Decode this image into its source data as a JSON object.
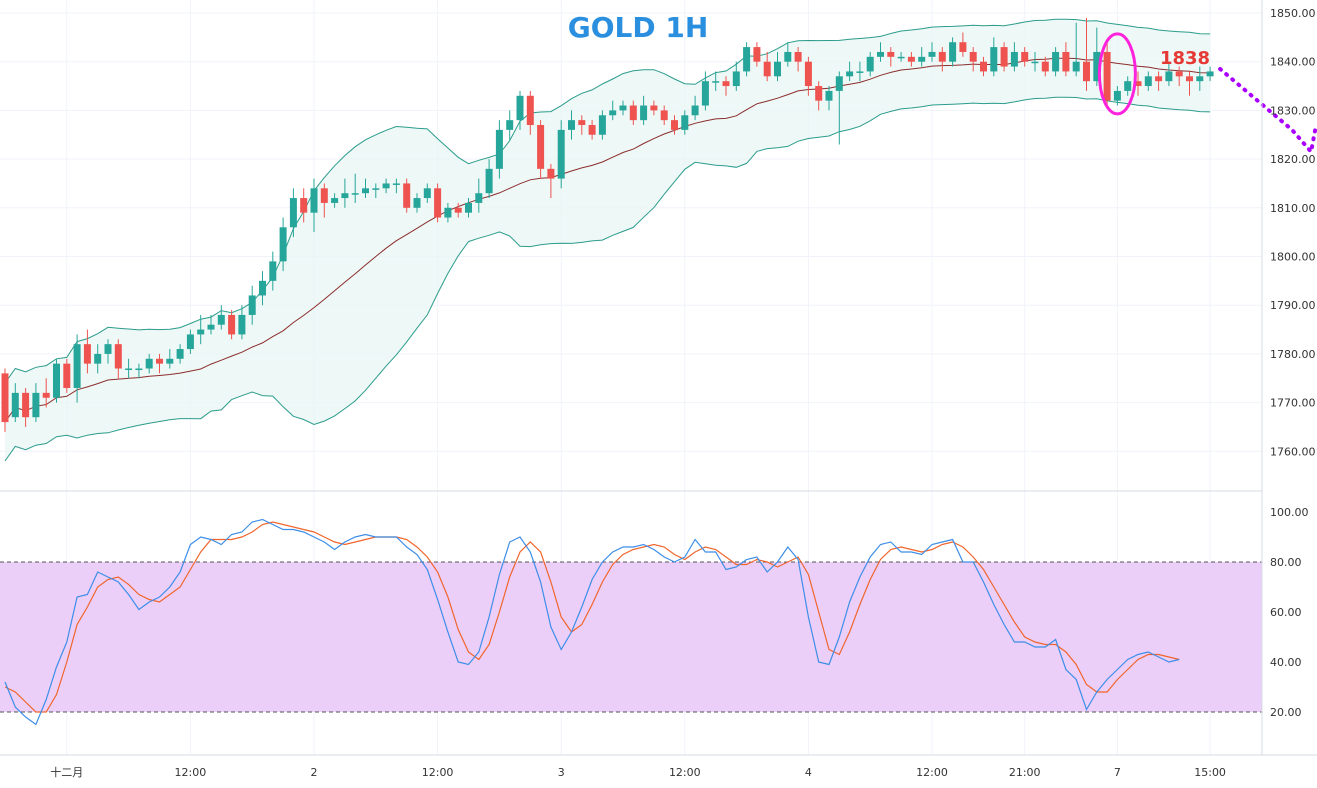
{
  "chart_data": [
    {
      "type": "candlestick",
      "title": "GOLD 1H",
      "ylim": [
        1755,
        1852
      ],
      "y_ticks": [
        "1850.00",
        "1840.00",
        "1830.00",
        "1820.00",
        "1810.00",
        "1800.00",
        "1790.00",
        "1780.00",
        "1770.00",
        "1760.00"
      ],
      "grid": true,
      "colors": {
        "up": "#26a69a",
        "down": "#ef5350",
        "band": "#2b9c8c",
        "basis": "#8b2e2e",
        "band_fill": "#e8f5f3",
        "title": "#2b8fe0",
        "annotation": "#e53935",
        "forecast": "#aa00ff",
        "highlight": "#ff22dd"
      },
      "annotation_price": "1838",
      "forecast": {
        "start": 1838.5,
        "mid": 1826,
        "end": 1821.5
      },
      "candles": [
        [
          1776,
          1766,
          1777,
          1764
        ],
        [
          1767,
          1772,
          1774,
          1766
        ],
        [
          1772,
          1767,
          1773,
          1765
        ],
        [
          1767,
          1772,
          1774,
          1766
        ],
        [
          1772,
          1771,
          1775,
          1769
        ],
        [
          1771,
          1778,
          1779,
          1770
        ],
        [
          1778,
          1773,
          1779,
          1772
        ],
        [
          1773,
          1782,
          1784,
          1770
        ],
        [
          1782,
          1778,
          1785,
          1776
        ],
        [
          1778,
          1780,
          1782,
          1776
        ],
        [
          1780,
          1782,
          1783,
          1778
        ],
        [
          1782,
          1777,
          1783,
          1775
        ],
        [
          1777,
          1777,
          1779,
          1775
        ],
        [
          1777,
          1777,
          1778,
          1775
        ],
        [
          1777,
          1779,
          1780,
          1776
        ],
        [
          1779,
          1778,
          1780,
          1776
        ],
        [
          1778,
          1779,
          1781,
          1777
        ],
        [
          1779,
          1781,
          1782,
          1778
        ],
        [
          1781,
          1784,
          1785,
          1780
        ],
        [
          1784,
          1785,
          1788,
          1782
        ],
        [
          1785,
          1786,
          1788,
          1784
        ],
        [
          1786,
          1788,
          1790,
          1785
        ],
        [
          1788,
          1784,
          1789,
          1783
        ],
        [
          1784,
          1788,
          1790,
          1783
        ],
        [
          1788,
          1792,
          1794,
          1786
        ],
        [
          1792,
          1795,
          1797,
          1790
        ],
        [
          1795,
          1799,
          1801,
          1793
        ],
        [
          1799,
          1806,
          1808,
          1797
        ],
        [
          1806,
          1812,
          1814,
          1804
        ],
        [
          1812,
          1809,
          1814,
          1807
        ],
        [
          1809,
          1814,
          1816,
          1805
        ],
        [
          1814,
          1811,
          1815,
          1808
        ],
        [
          1811,
          1812,
          1813,
          1810
        ],
        [
          1812,
          1813,
          1816,
          1810
        ],
        [
          1813,
          1813,
          1817,
          1811
        ],
        [
          1813,
          1814,
          1816,
          1812
        ],
        [
          1814,
          1814,
          1815,
          1812
        ],
        [
          1814,
          1815,
          1816,
          1813
        ],
        [
          1815,
          1815,
          1816,
          1813
        ],
        [
          1815,
          1810,
          1816,
          1809
        ],
        [
          1810,
          1812,
          1813,
          1809
        ],
        [
          1812,
          1814,
          1815,
          1811
        ],
        [
          1814,
          1808,
          1815,
          1807
        ],
        [
          1808,
          1810,
          1811,
          1807
        ],
        [
          1810,
          1809,
          1811,
          1808
        ],
        [
          1809,
          1811,
          1812,
          1808
        ],
        [
          1811,
          1813,
          1816,
          1809
        ],
        [
          1813,
          1818,
          1820,
          1812
        ],
        [
          1818,
          1826,
          1828,
          1816
        ],
        [
          1826,
          1828,
          1830,
          1824
        ],
        [
          1828,
          1833,
          1834,
          1826
        ],
        [
          1833,
          1827,
          1834,
          1825
        ],
        [
          1827,
          1818,
          1828,
          1816
        ],
        [
          1818,
          1816,
          1819,
          1812
        ],
        [
          1816,
          1826,
          1828,
          1814
        ],
        [
          1826,
          1828,
          1830,
          1824
        ],
        [
          1828,
          1827,
          1829,
          1825
        ],
        [
          1827,
          1825,
          1828,
          1824
        ],
        [
          1825,
          1829,
          1830,
          1824
        ],
        [
          1829,
          1830,
          1832,
          1828
        ],
        [
          1830,
          1831,
          1832,
          1829
        ],
        [
          1831,
          1828,
          1832,
          1827
        ],
        [
          1828,
          1831,
          1833,
          1827
        ],
        [
          1831,
          1830,
          1832,
          1829
        ],
        [
          1830,
          1828,
          1831,
          1827
        ],
        [
          1828,
          1826,
          1829,
          1825
        ],
        [
          1826,
          1829,
          1830,
          1825
        ],
        [
          1829,
          1831,
          1833,
          1828
        ],
        [
          1831,
          1836,
          1838,
          1830
        ],
        [
          1836,
          1836,
          1838,
          1834
        ],
        [
          1836,
          1835,
          1837,
          1833
        ],
        [
          1835,
          1838,
          1840,
          1834
        ],
        [
          1838,
          1843,
          1844,
          1837
        ],
        [
          1843,
          1840,
          1844,
          1839
        ],
        [
          1840,
          1837,
          1842,
          1836
        ],
        [
          1837,
          1840,
          1842,
          1836
        ],
        [
          1840,
          1842,
          1844,
          1839
        ],
        [
          1842,
          1840,
          1843,
          1838
        ],
        [
          1840,
          1835,
          1841,
          1833
        ],
        [
          1835,
          1832,
          1836,
          1830
        ],
        [
          1832,
          1834,
          1835,
          1830
        ],
        [
          1834,
          1837,
          1838,
          1823
        ],
        [
          1837,
          1838,
          1840,
          1836
        ],
        [
          1838,
          1838,
          1840,
          1836
        ],
        [
          1838,
          1841,
          1842,
          1837
        ],
        [
          1841,
          1842,
          1844,
          1840
        ],
        [
          1842,
          1841,
          1843,
          1839
        ],
        [
          1841,
          1841,
          1842,
          1840
        ],
        [
          1841,
          1840,
          1842,
          1839
        ],
        [
          1840,
          1841,
          1843,
          1839
        ],
        [
          1841,
          1842,
          1844,
          1840
        ],
        [
          1842,
          1840,
          1843,
          1838
        ],
        [
          1840,
          1844,
          1845,
          1839
        ],
        [
          1844,
          1842,
          1846,
          1841
        ],
        [
          1842,
          1840,
          1843,
          1838
        ],
        [
          1840,
          1838,
          1841,
          1837
        ],
        [
          1838,
          1843,
          1845,
          1837
        ],
        [
          1843,
          1839,
          1844,
          1838
        ],
        [
          1839,
          1842,
          1844,
          1838
        ],
        [
          1842,
          1840,
          1843,
          1839
        ],
        [
          1840,
          1840,
          1842,
          1838
        ],
        [
          1840,
          1838,
          1841,
          1837
        ],
        [
          1838,
          1842,
          1843,
          1837
        ],
        [
          1842,
          1838,
          1844,
          1837
        ],
        [
          1838,
          1840,
          1848,
          1837
        ],
        [
          1840,
          1836,
          1849,
          1834
        ],
        [
          1836,
          1842,
          1847,
          1835
        ],
        [
          1842,
          1832,
          1844,
          1831
        ],
        [
          1832,
          1834,
          1835,
          1831
        ],
        [
          1834,
          1836,
          1837,
          1833
        ],
        [
          1836,
          1835,
          1838,
          1833
        ],
        [
          1835,
          1837,
          1838,
          1834
        ],
        [
          1837,
          1836,
          1838,
          1834
        ],
        [
          1836,
          1838,
          1840,
          1835
        ],
        [
          1838,
          1837,
          1839,
          1835
        ],
        [
          1837,
          1836,
          1838,
          1833
        ],
        [
          1836,
          1837,
          1839,
          1834
        ],
        [
          1837,
          1838,
          1839,
          1836
        ]
      ]
    },
    {
      "type": "line",
      "ylim": [
        0,
        110
      ],
      "y_ticks": [
        "100.00",
        "80.00",
        "60.00",
        "40.00",
        "20.00"
      ],
      "band": [
        20,
        80
      ],
      "colors": {
        "k": "#3d8ee8",
        "d": "#f0652c",
        "band_fill": "#ebcff9",
        "band_line": "#555555"
      },
      "series": [
        {
          "values": [
            32,
            22,
            18,
            15,
            25,
            38,
            48,
            66,
            67,
            76,
            74,
            72,
            67,
            61,
            64,
            66,
            70,
            76,
            87,
            90,
            89,
            87,
            91,
            92,
            96,
            97,
            95,
            93,
            93,
            92,
            90,
            88,
            85,
            88,
            90,
            91,
            90,
            90,
            90,
            86,
            83,
            77,
            65,
            52,
            40,
            39,
            44,
            58,
            75,
            88,
            90,
            84,
            72,
            54,
            45,
            52,
            62,
            73,
            80,
            84,
            86,
            86,
            87,
            85,
            82,
            80,
            82,
            89,
            84,
            84,
            77,
            78,
            81,
            82,
            76,
            80,
            86,
            81,
            58,
            40,
            39,
            50,
            64,
            74,
            82,
            87,
            88,
            84,
            84,
            83,
            87,
            88,
            89,
            80,
            80,
            72,
            63,
            55,
            48,
            48,
            46,
            46,
            49,
            37,
            33,
            21,
            28,
            33,
            37,
            41,
            43,
            44,
            42,
            40,
            41
          ]
        },
        {
          "values": [
            30,
            28,
            24,
            20,
            20,
            27,
            40,
            55,
            62,
            70,
            73,
            74,
            71,
            67,
            65,
            64,
            67,
            70,
            77,
            84,
            89,
            89,
            89,
            90,
            92,
            95,
            96,
            95,
            94,
            93,
            92,
            90,
            88,
            87,
            88,
            89,
            90,
            90,
            90,
            89,
            86,
            82,
            76,
            66,
            53,
            44,
            41,
            47,
            60,
            74,
            84,
            88,
            84,
            72,
            58,
            52,
            55,
            63,
            72,
            79,
            83,
            85,
            86,
            87,
            86,
            83,
            81,
            84,
            86,
            85,
            82,
            79,
            79,
            81,
            80,
            78,
            80,
            82,
            75,
            60,
            45,
            43,
            52,
            63,
            73,
            81,
            85,
            86,
            85,
            84,
            85,
            87,
            88,
            86,
            82,
            77,
            70,
            63,
            56,
            50,
            48,
            47,
            47,
            44,
            39,
            31,
            28,
            28,
            33,
            37,
            41,
            43,
            43,
            42,
            41
          ]
        }
      ]
    }
  ],
  "x_axis": {
    "labels": [
      {
        "text": "十二月",
        "i": 6
      },
      {
        "text": "12:00",
        "i": 18
      },
      {
        "text": "2",
        "i": 30
      },
      {
        "text": "12:00",
        "i": 42
      },
      {
        "text": "3",
        "i": 54
      },
      {
        "text": "12:00",
        "i": 66
      },
      {
        "text": "4",
        "i": 78
      },
      {
        "text": "12:00",
        "i": 90
      },
      {
        "text": "21:00",
        "i": 99
      },
      {
        "text": "7",
        "i": 108
      },
      {
        "text": "15:00",
        "i": 117
      }
    ]
  }
}
